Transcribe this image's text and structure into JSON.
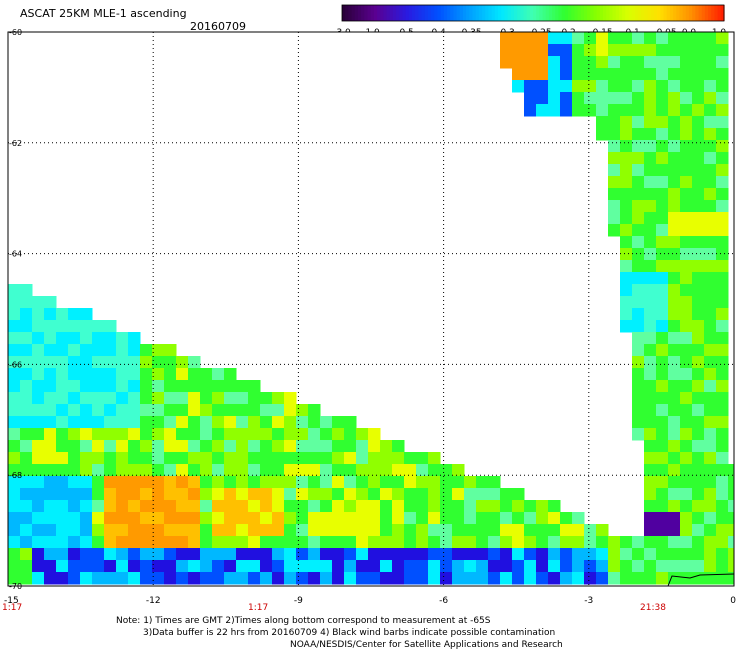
{
  "header": {
    "title": "ASCAT 25KM MLE-1 ascending",
    "date": "20160709"
  },
  "colorbar": {
    "tick_labels": [
      "-3.0",
      "-1.0",
      "-0.5",
      "-0.4",
      "-0.35",
      "-0.3",
      "-0.25",
      "-0.2",
      "-0.15",
      "-0.1",
      "-0.05",
      "0.0",
      "1.0"
    ],
    "colors": [
      "#2a003a",
      "#5a0090",
      "#2a1ae0",
      "#0050ff",
      "#00a0ff",
      "#00e8ff",
      "#40ffb0",
      "#30ff30",
      "#88ff00",
      "#d8ff00",
      "#ffe000",
      "#ff9000",
      "#ff2000"
    ]
  },
  "map": {
    "lat_labels": [
      "-60",
      "-62",
      "-64",
      "-66",
      "-68",
      "-70"
    ],
    "lon_labels": [
      "-15",
      "-12",
      "-9",
      "-6",
      "-3",
      "0"
    ],
    "time_labels": [
      "1:17",
      "1:17",
      "21:38"
    ],
    "time_color": "#cc0000",
    "grid": true
  },
  "notes": {
    "line1": "Note: 1) Times are GMT 2)Times along bottom correspond to measurement at -65S",
    "line2": "3)Data buffer is 22 hrs from 20160709 4) Black wind barbs indicate possible contamination",
    "line3": "NOAA/NESDIS/Center for Satellite Applications and Research"
  }
}
